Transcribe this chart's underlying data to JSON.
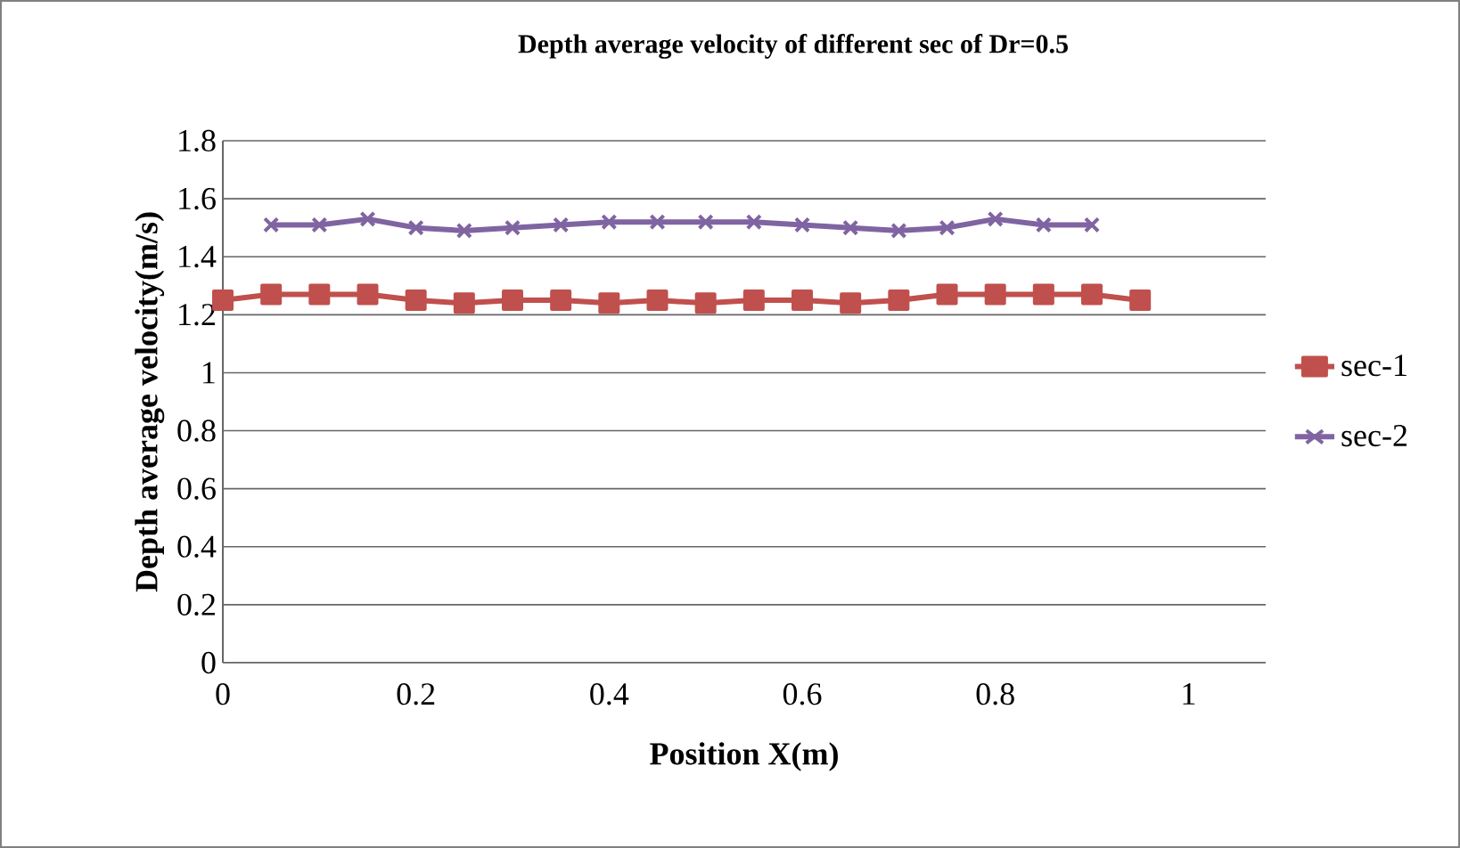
{
  "chart_data": {
    "type": "line",
    "title": "Depth average velocity of different sec of Dr=0.5",
    "xlabel": "Position X(m)",
    "ylabel": "Depth average velocity(m/s)",
    "xlim": [
      0,
      1.08
    ],
    "xticks": [
      0,
      0.2,
      0.4,
      0.6,
      0.8,
      1
    ],
    "ylim": [
      0,
      1.8
    ],
    "yticks": [
      0,
      0.2,
      0.4,
      0.6,
      0.8,
      1,
      1.2,
      1.4,
      1.6,
      1.8
    ],
    "grid": "y",
    "legend": "right",
    "line_style": "solid",
    "series": [
      {
        "name": "sec-1",
        "color": "#c0504d",
        "marker": "square",
        "x": [
          0,
          0.05,
          0.1,
          0.15,
          0.2,
          0.25,
          0.3,
          0.35,
          0.4,
          0.45,
          0.5,
          0.55,
          0.6,
          0.65,
          0.7,
          0.75,
          0.8,
          0.85,
          0.9,
          0.95
        ],
        "values": [
          1.25,
          1.27,
          1.27,
          1.27,
          1.25,
          1.24,
          1.25,
          1.25,
          1.24,
          1.25,
          1.24,
          1.25,
          1.25,
          1.24,
          1.25,
          1.27,
          1.27,
          1.27,
          1.27,
          1.25
        ]
      },
      {
        "name": "sec-2",
        "color": "#8064a2",
        "marker": "cross",
        "x": [
          0.05,
          0.1,
          0.15,
          0.2,
          0.25,
          0.3,
          0.35,
          0.4,
          0.45,
          0.5,
          0.55,
          0.6,
          0.65,
          0.7,
          0.75,
          0.8,
          0.85,
          0.9
        ],
        "values": [
          1.51,
          1.51,
          1.53,
          1.5,
          1.49,
          1.5,
          1.51,
          1.52,
          1.52,
          1.52,
          1.52,
          1.51,
          1.5,
          1.49,
          1.5,
          1.53,
          1.51,
          1.51
        ]
      }
    ]
  }
}
